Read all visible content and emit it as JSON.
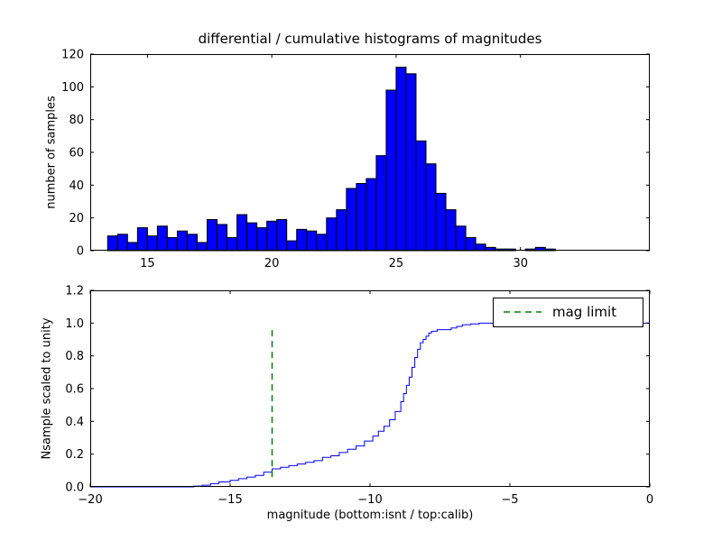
{
  "figure": {
    "background": "#ffffff",
    "text_color": "#000000"
  },
  "chart_data": [
    {
      "type": "bar",
      "title": "differential / cumulative histograms of magnitudes",
      "ylabel": "number of samples",
      "xlabel": "",
      "bar_color": "#0000ff",
      "bar_edge_color": "#000000",
      "bin_start": 13.4,
      "bin_width": 0.4,
      "values": [
        9,
        10,
        5,
        14,
        9,
        15,
        8,
        12,
        10,
        5,
        19,
        16,
        8,
        22,
        17,
        14,
        18,
        19,
        6,
        13,
        12,
        10,
        20,
        25,
        38,
        41,
        44,
        58,
        98,
        112,
        108,
        67,
        53,
        35,
        25,
        15,
        8,
        4,
        2,
        1,
        1,
        0,
        1,
        2,
        1
      ],
      "xlim": [
        12.7,
        35.2
      ],
      "ylim": [
        0,
        120
      ],
      "xticks": [
        15,
        20,
        25,
        30
      ],
      "xtick_labels": [
        "15",
        "20",
        "25",
        "30"
      ],
      "yticks": [
        0,
        20,
        40,
        60,
        80,
        100,
        120
      ],
      "ytick_labels": [
        "0",
        "20",
        "40",
        "60",
        "80",
        "100",
        "120"
      ],
      "grid": false
    },
    {
      "type": "line",
      "title": "",
      "ylabel": "Nsample scaled to unity",
      "xlabel": "magnitude (bottom:isnt / top:calib)",
      "line_color": "#0000ff",
      "step": true,
      "points": [
        [
          -20,
          0
        ],
        [
          -16.6,
          0
        ],
        [
          -16.3,
          0.005
        ],
        [
          -16,
          0.01
        ],
        [
          -15.7,
          0.02
        ],
        [
          -15.4,
          0.03
        ],
        [
          -15,
          0.04
        ],
        [
          -14.7,
          0.05
        ],
        [
          -14.4,
          0.06
        ],
        [
          -14.1,
          0.07
        ],
        [
          -13.8,
          0.09
        ],
        [
          -13.5,
          0.11
        ],
        [
          -13.2,
          0.12
        ],
        [
          -12.9,
          0.13
        ],
        [
          -12.6,
          0.14
        ],
        [
          -12.3,
          0.15
        ],
        [
          -12,
          0.16
        ],
        [
          -11.7,
          0.18
        ],
        [
          -11.4,
          0.19
        ],
        [
          -11.1,
          0.21
        ],
        [
          -10.8,
          0.23
        ],
        [
          -10.5,
          0.25
        ],
        [
          -10.2,
          0.28
        ],
        [
          -9.9,
          0.31
        ],
        [
          -9.7,
          0.34
        ],
        [
          -9.5,
          0.37
        ],
        [
          -9.3,
          0.41
        ],
        [
          -9.1,
          0.46
        ],
        [
          -8.9,
          0.52
        ],
        [
          -8.8,
          0.57
        ],
        [
          -8.7,
          0.62
        ],
        [
          -8.6,
          0.67
        ],
        [
          -8.5,
          0.73
        ],
        [
          -8.4,
          0.79
        ],
        [
          -8.3,
          0.84
        ],
        [
          -8.2,
          0.88
        ],
        [
          -8.1,
          0.9
        ],
        [
          -8,
          0.92
        ],
        [
          -7.9,
          0.94
        ],
        [
          -7.8,
          0.95
        ],
        [
          -7.6,
          0.96
        ],
        [
          -7.3,
          0.96
        ],
        [
          -7.1,
          0.97
        ],
        [
          -6.9,
          0.98
        ],
        [
          -6.7,
          0.99
        ],
        [
          -6.4,
          0.995
        ],
        [
          -6.1,
          1
        ],
        [
          0,
          1
        ]
      ],
      "xlim": [
        -20,
        0
      ],
      "ylim": [
        0,
        1.2
      ],
      "xticks": [
        -20,
        -15,
        -10,
        -5,
        0
      ],
      "xtick_labels": [
        "−20",
        "−15",
        "−10",
        "−5",
        "0"
      ],
      "yticks": [
        0,
        0.2,
        0.4,
        0.6,
        0.8,
        1.0,
        1.2
      ],
      "ytick_labels": [
        "0.0",
        "0.2",
        "0.4",
        "0.6",
        "0.8",
        "1.0",
        "1.2"
      ],
      "vline": {
        "x": -13.5,
        "y0": 0.06,
        "y1": 0.96,
        "color": "#008000",
        "style": "dashed"
      },
      "legend": {
        "label": "mag limit",
        "position": "upper right",
        "sample_color": "#008000"
      },
      "grid": false
    }
  ]
}
